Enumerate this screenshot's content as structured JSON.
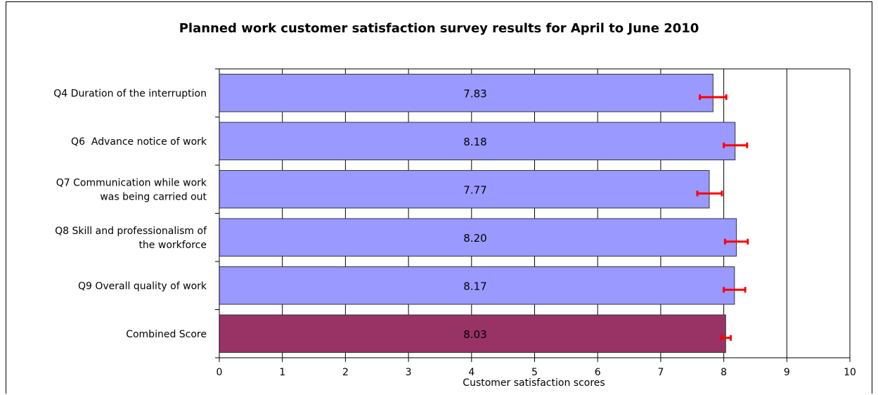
{
  "chart_data": {
    "type": "bar",
    "orientation": "horizontal",
    "title": "Planned work customer satisfaction survey results for April to June 2010",
    "xlabel": "Customer satisfaction scores",
    "ylabel": "",
    "xlim": [
      0,
      10
    ],
    "xticks": [
      "0",
      "1",
      "2",
      "3",
      "4",
      "5",
      "6",
      "7",
      "8",
      "9",
      "10"
    ],
    "grid": true,
    "categories": [
      [
        "Q4 Duration of the interruption"
      ],
      [
        "Q6  Advance notice of work"
      ],
      [
        "Q7 Communication while work",
        "was being carried out"
      ],
      [
        "Q8 Skill and professionalism of",
        "the workforce"
      ],
      [
        "Q9 Overall quality of work"
      ],
      [
        "Combined Score"
      ]
    ],
    "values": [
      7.83,
      8.18,
      7.77,
      8.2,
      8.17,
      8.03
    ],
    "data_labels": [
      "7.83",
      "8.18",
      "7.77",
      "8.20",
      "8.17",
      "8.03"
    ],
    "error_bars": [
      [
        7.62,
        8.04
      ],
      [
        8.0,
        8.37
      ],
      [
        7.58,
        7.97
      ],
      [
        8.02,
        8.38
      ],
      [
        8.0,
        8.34
      ],
      [
        7.96,
        8.11
      ]
    ],
    "bar_colors": [
      "#9999ff",
      "#9999ff",
      "#9999ff",
      "#9999ff",
      "#9999ff",
      "#993366"
    ],
    "error_color": "#ff0000",
    "border_color": "#333333"
  }
}
